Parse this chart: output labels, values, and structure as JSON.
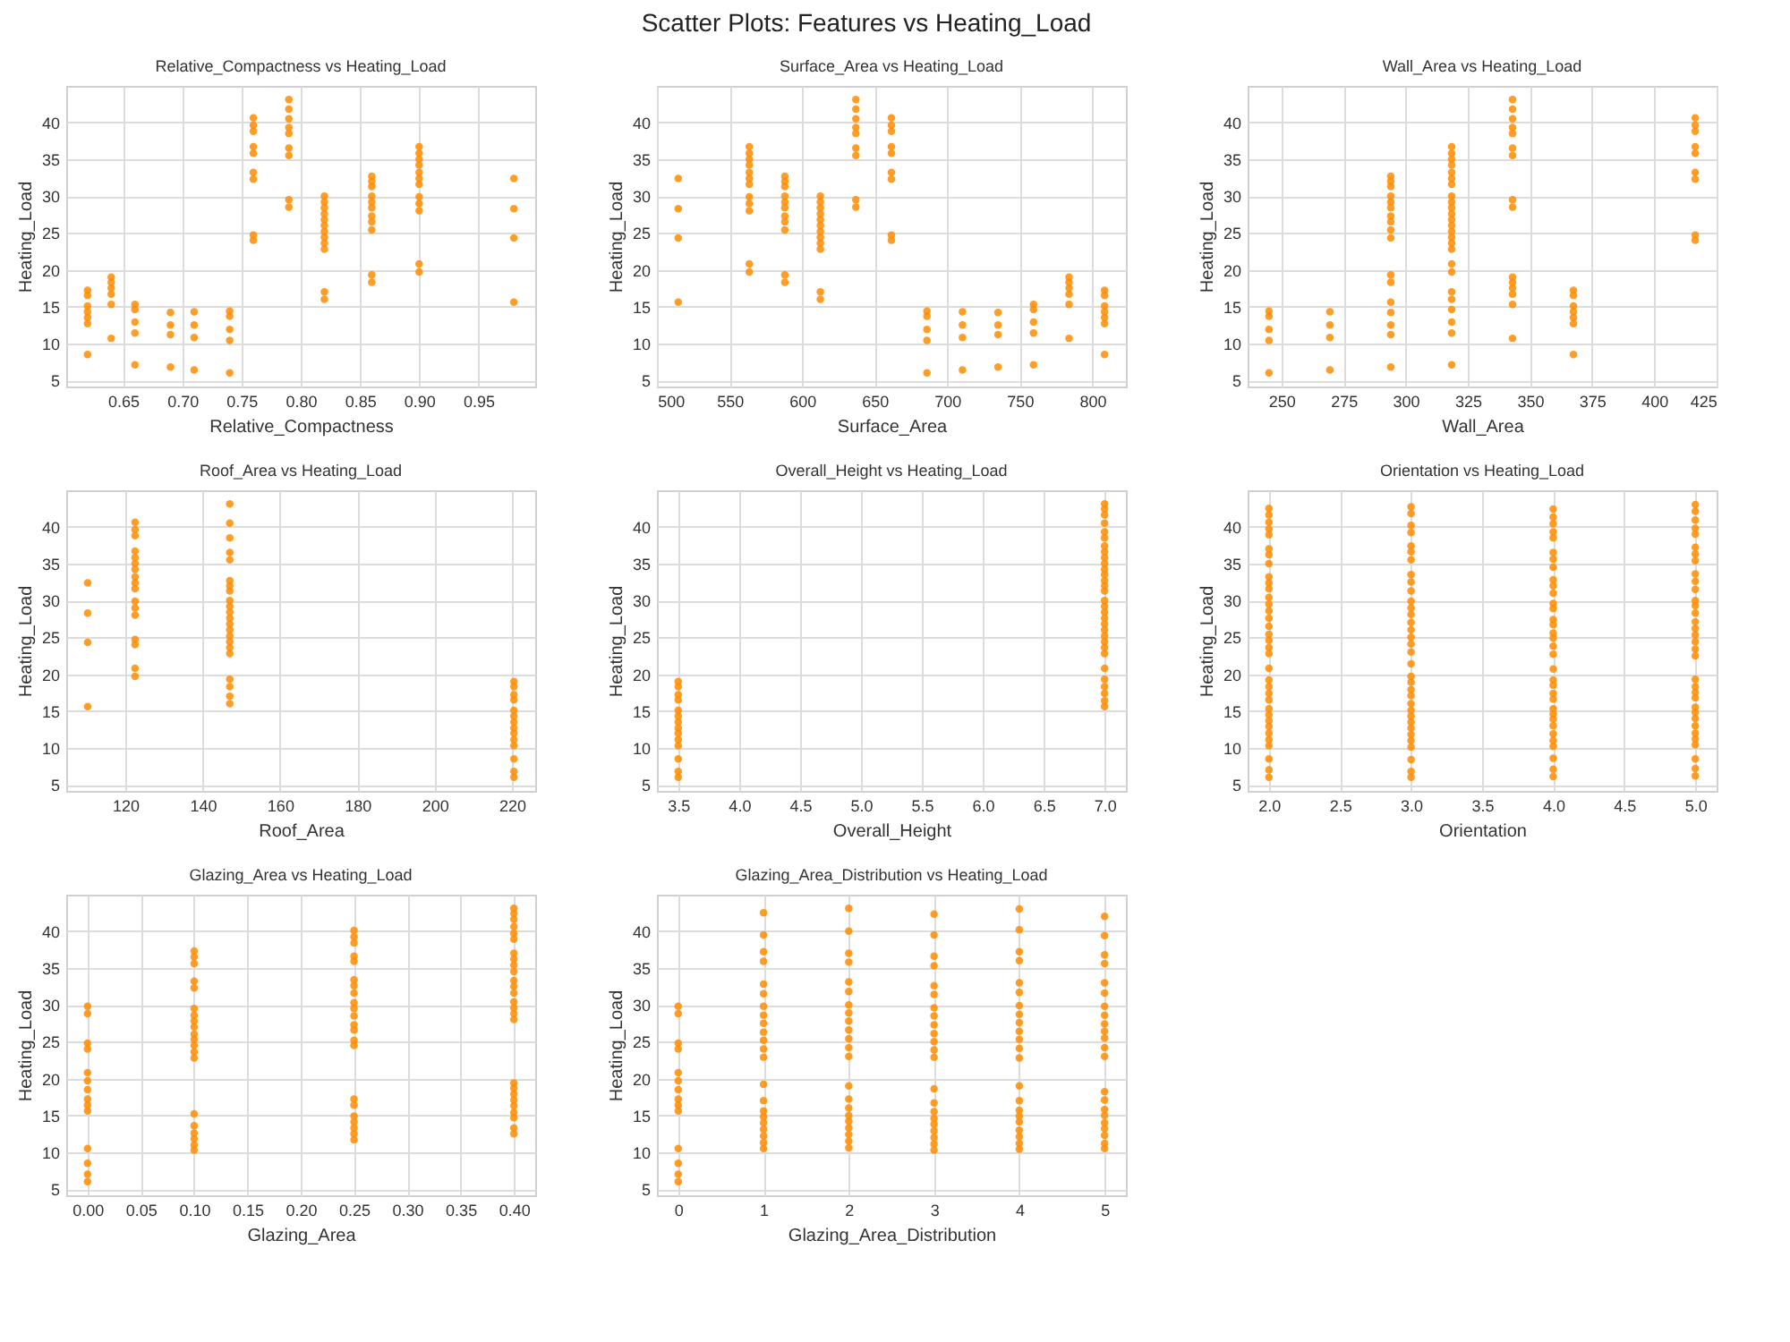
{
  "chart_data": [
    {
      "type": "scatter",
      "title": "Relative_Compactness vs Heating_Load",
      "xlabel": "Relative_Compactness",
      "ylabel": "Heating_Load",
      "annotations": [
        "Scatter Plots: Features vs Heating_Load"
      ],
      "xlim": [
        0.602,
        0.998
      ],
      "xticks": [
        0.65,
        {
          "value": 0.7,
          "label": "0.70"
        },
        0.75,
        {
          "value": 0.8,
          "label": "0.80"
        },
        0.85,
        {
          "value": 0.9,
          "label": "0.90"
        },
        0.95
      ],
      "ylim": [
        4.16,
        44.95
      ],
      "yticks": [
        5,
        10,
        15,
        20,
        25,
        30,
        35,
        40
      ],
      "grid": true,
      "series": [
        {
          "color": "#ff8c00",
          "x": [
            0.62,
            0.62,
            0.62,
            0.62,
            0.62,
            0.62,
            0.62
          ],
          "values": [
            8.5,
            12.7,
            13.5,
            14.3,
            15.1,
            16.5,
            17.2
          ]
        },
        {
          "color": "#ff8c00",
          "x": [
            0.64,
            0.64,
            0.64,
            0.64,
            0.64,
            0.64
          ],
          "values": [
            10.7,
            15.3,
            16.7,
            17.5,
            18.3,
            19.0
          ]
        },
        {
          "color": "#ff8c00",
          "x": [
            0.66,
            0.66,
            0.66,
            0.66,
            0.66
          ],
          "values": [
            7.1,
            11.4,
            12.9,
            14.6,
            15.3
          ]
        },
        {
          "color": "#ff8c00",
          "x": [
            0.69,
            0.69,
            0.69,
            0.69
          ],
          "values": [
            6.8,
            11.2,
            12.5,
            14.2
          ]
        },
        {
          "color": "#ff8c00",
          "x": [
            0.71,
            0.71,
            0.71,
            0.71
          ],
          "values": [
            6.4,
            10.8,
            12.5,
            14.3
          ]
        },
        {
          "color": "#ff8c00",
          "x": [
            0.74,
            0.74,
            0.74,
            0.74,
            0.74
          ],
          "values": [
            6.0,
            10.4,
            11.9,
            13.7,
            14.4
          ]
        },
        {
          "color": "#ff8c00",
          "x": [
            0.76,
            0.76,
            0.76,
            0.76,
            0.76,
            0.76,
            0.76,
            0.76,
            0.76
          ],
          "values": [
            24.0,
            24.7,
            32.3,
            33.2,
            35.8,
            36.7,
            38.8,
            39.6,
            40.6
          ]
        },
        {
          "color": "#ff8c00",
          "x": [
            0.79,
            0.79,
            0.79,
            0.79,
            0.79,
            0.79,
            0.79,
            0.79,
            0.79
          ],
          "values": [
            28.5,
            29.5,
            35.5,
            36.5,
            38.5,
            39.3,
            40.5,
            41.8,
            43.1
          ]
        },
        {
          "color": "#ff8c00",
          "x": [
            0.82,
            0.82,
            0.82,
            0.82,
            0.82,
            0.82,
            0.82,
            0.82,
            0.82,
            0.82,
            0.82,
            0.82
          ],
          "values": [
            16.0,
            17.0,
            22.8,
            23.6,
            24.4,
            25.2,
            26.0,
            26.8,
            27.6,
            28.4,
            29.2,
            30.0
          ]
        },
        {
          "color": "#ff8c00",
          "x": [
            0.86,
            0.86,
            0.86,
            0.86,
            0.86,
            0.86,
            0.86,
            0.86,
            0.86,
            0.86,
            0.86
          ],
          "values": [
            18.3,
            19.3,
            25.4,
            26.5,
            27.3,
            28.4,
            29.2,
            30.0,
            31.3,
            32.0,
            32.7
          ]
        },
        {
          "color": "#ff8c00",
          "x": [
            0.9,
            0.9,
            0.9,
            0.9,
            0.9,
            0.9,
            0.9,
            0.9,
            0.9,
            0.9,
            0.9,
            0.9
          ],
          "values": [
            19.7,
            20.8,
            28.0,
            29.0,
            29.9,
            31.6,
            32.4,
            33.2,
            34.2,
            35.0,
            35.8,
            36.7
          ]
        },
        {
          "color": "#ff8c00",
          "x": [
            0.98,
            0.98,
            0.98,
            0.98
          ],
          "values": [
            15.6,
            24.3,
            28.3,
            32.4
          ]
        }
      ]
    },
    {
      "type": "scatter",
      "title": "Surface_Area vs Heating_Load",
      "xlabel": "Surface_Area",
      "ylabel": "Heating_Load",
      "xlim": [
        499.8,
        823.2
      ],
      "xticks": [
        500,
        550,
        600,
        650,
        700,
        750,
        800
      ],
      "ylim": [
        4.16,
        44.95
      ],
      "yticks": [
        5,
        10,
        15,
        20,
        25,
        30,
        35,
        40
      ],
      "grid": true,
      "series": [
        {
          "color": "#ff8c00",
          "x": [
            514.5,
            514.5,
            514.5,
            514.5
          ],
          "values": [
            15.6,
            24.3,
            28.3,
            32.4
          ]
        },
        {
          "color": "#ff8c00",
          "x": [
            563.5,
            563.5,
            563.5,
            563.5,
            563.5,
            563.5,
            563.5,
            563.5,
            563.5,
            563.5,
            563.5,
            563.5
          ],
          "values": [
            19.7,
            20.8,
            28.0,
            29.0,
            29.9,
            31.6,
            32.4,
            33.2,
            34.2,
            35.0,
            35.8,
            36.7
          ]
        },
        {
          "color": "#ff8c00",
          "x": [
            588,
            588,
            588,
            588,
            588,
            588,
            588,
            588,
            588,
            588,
            588
          ],
          "values": [
            18.3,
            19.3,
            25.4,
            26.5,
            27.3,
            28.4,
            29.2,
            30.0,
            31.3,
            32.0,
            32.7
          ]
        },
        {
          "color": "#ff8c00",
          "x": [
            612.5,
            612.5,
            612.5,
            612.5,
            612.5,
            612.5,
            612.5,
            612.5,
            612.5,
            612.5,
            612.5,
            612.5
          ],
          "values": [
            16.0,
            17.0,
            22.8,
            23.6,
            24.4,
            25.2,
            26.0,
            26.8,
            27.6,
            28.4,
            29.2,
            30.0
          ]
        },
        {
          "color": "#ff8c00",
          "x": [
            637,
            637,
            637,
            637,
            637,
            637,
            637,
            637,
            637
          ],
          "values": [
            28.5,
            29.5,
            35.5,
            36.5,
            38.5,
            39.3,
            40.5,
            41.8,
            43.1
          ]
        },
        {
          "color": "#ff8c00",
          "x": [
            661.5,
            661.5,
            661.5,
            661.5,
            661.5,
            661.5,
            661.5,
            661.5,
            661.5
          ],
          "values": [
            24.0,
            24.7,
            32.3,
            33.2,
            35.8,
            36.7,
            38.8,
            39.6,
            40.6
          ]
        },
        {
          "color": "#ff8c00",
          "x": [
            686,
            686,
            686,
            686,
            686
          ],
          "values": [
            6.0,
            10.4,
            11.9,
            13.7,
            14.4
          ]
        },
        {
          "color": "#ff8c00",
          "x": [
            710.5,
            710.5,
            710.5,
            710.5
          ],
          "values": [
            6.4,
            10.8,
            12.5,
            14.3
          ]
        },
        {
          "color": "#ff8c00",
          "x": [
            735,
            735,
            735,
            735
          ],
          "values": [
            6.8,
            11.2,
            12.5,
            14.2
          ]
        },
        {
          "color": "#ff8c00",
          "x": [
            759.5,
            759.5,
            759.5,
            759.5,
            759.5
          ],
          "values": [
            7.1,
            11.4,
            12.9,
            14.6,
            15.3
          ]
        },
        {
          "color": "#ff8c00",
          "x": [
            784,
            784,
            784,
            784,
            784,
            784
          ],
          "values": [
            10.7,
            15.3,
            16.7,
            17.5,
            18.3,
            19.0
          ]
        },
        {
          "color": "#ff8c00",
          "x": [
            808.5,
            808.5,
            808.5,
            808.5,
            808.5,
            808.5,
            808.5
          ],
          "values": [
            8.5,
            12.7,
            13.5,
            14.3,
            15.1,
            16.5,
            17.2
          ]
        }
      ]
    },
    {
      "type": "scatter",
      "title": "Wall_Area vs Heating_Load",
      "xlabel": "Wall_Area",
      "ylabel": "Heating_Load",
      "xlim": [
        236.4,
        425.1
      ],
      "xticks": [
        250,
        275,
        300,
        325,
        350,
        375,
        400,
        425
      ],
      "ylim": [
        4.16,
        44.95
      ],
      "yticks": [
        5,
        10,
        15,
        20,
        25,
        30,
        35,
        40
      ],
      "grid": true,
      "series": [
        {
          "color": "#ff8c00",
          "x": [
            245,
            245,
            245,
            245,
            245
          ],
          "values": [
            6.0,
            10.4,
            11.9,
            13.7,
            14.4
          ]
        },
        {
          "color": "#ff8c00",
          "x": [
            269.5,
            269.5,
            269.5,
            269.5
          ],
          "values": [
            6.4,
            10.8,
            12.5,
            14.3
          ]
        },
        {
          "color": "#ff8c00",
          "x": [
            294,
            294,
            294,
            294,
            294,
            294,
            294,
            294,
            294,
            294,
            294,
            294,
            294,
            294,
            294,
            294,
            294
          ],
          "values": [
            6.8,
            11.2,
            12.5,
            14.2,
            15.6,
            18.3,
            19.3,
            24.3,
            25.4,
            26.5,
            27.3,
            28.4,
            29.2,
            30.0,
            31.3,
            32.0,
            32.7
          ]
        },
        {
          "color": "#ff8c00",
          "x": [
            318.5,
            318.5,
            318.5,
            318.5,
            318.5,
            318.5,
            318.5,
            318.5,
            318.5,
            318.5,
            318.5,
            318.5,
            318.5,
            318.5,
            318.5,
            318.5,
            318.5,
            318.5,
            318.5,
            318.5,
            318.5,
            318.5,
            318.5,
            318.5,
            318.5
          ],
          "values": [
            7.1,
            11.4,
            12.9,
            14.6,
            16.0,
            17.0,
            19.7,
            20.8,
            22.8,
            23.6,
            24.4,
            25.2,
            26.0,
            26.8,
            27.6,
            28.4,
            29.2,
            30.0,
            31.6,
            32.4,
            33.2,
            34.2,
            35.0,
            35.8,
            36.7
          ]
        },
        {
          "color": "#ff8c00",
          "x": [
            343,
            343,
            343,
            343,
            343,
            343,
            343,
            343,
            343,
            343,
            343,
            343,
            343,
            343,
            343
          ],
          "values": [
            10.7,
            15.3,
            16.7,
            17.5,
            18.3,
            19.0,
            28.5,
            29.5,
            35.5,
            36.5,
            38.5,
            39.3,
            40.5,
            41.8,
            43.1
          ]
        },
        {
          "color": "#ff8c00",
          "x": [
            367.5,
            367.5,
            367.5,
            367.5,
            367.5,
            367.5,
            367.5
          ],
          "values": [
            8.5,
            12.7,
            13.5,
            14.3,
            15.1,
            16.5,
            17.2
          ]
        },
        {
          "color": "#ff8c00",
          "x": [
            416.5,
            416.5,
            416.5,
            416.5,
            416.5,
            416.5,
            416.5,
            416.5,
            416.5
          ],
          "values": [
            24.0,
            24.7,
            32.3,
            33.2,
            35.8,
            36.7,
            38.8,
            39.6,
            40.6
          ]
        }
      ]
    },
    {
      "type": "scatter",
      "title": "Roof_Area vs Heating_Load",
      "xlabel": "Roof_Area",
      "ylabel": "Heating_Load",
      "xlim": [
        104.7,
        226
      ],
      "xticks": [
        120,
        140,
        160,
        180,
        200,
        220
      ],
      "ylim": [
        4.16,
        44.95
      ],
      "yticks": [
        5,
        10,
        15,
        20,
        25,
        30,
        35,
        40
      ],
      "grid": true,
      "series": [
        {
          "color": "#ff8c00",
          "x": [
            110.25,
            110.25,
            110.25,
            110.25
          ],
          "values": [
            15.6,
            24.3,
            28.3,
            32.4
          ]
        },
        {
          "color": "#ff8c00",
          "x": [
            122.5,
            122.5,
            122.5,
            122.5,
            122.5,
            122.5,
            122.5,
            122.5,
            122.5,
            122.5,
            122.5,
            122.5,
            122.5,
            122.5,
            122.5,
            122.5,
            122.5
          ],
          "values": [
            19.7,
            20.8,
            24.0,
            24.7,
            28.0,
            29.0,
            29.9,
            31.6,
            32.4,
            33.2,
            34.2,
            35.0,
            35.8,
            36.7,
            38.8,
            39.6,
            40.6
          ]
        },
        {
          "color": "#ff8c00",
          "x": [
            147,
            147,
            147,
            147,
            147,
            147,
            147,
            147,
            147,
            147,
            147,
            147,
            147,
            147,
            147,
            147,
            147,
            147,
            147,
            147,
            147,
            147
          ],
          "values": [
            16.0,
            17.0,
            18.3,
            19.3,
            22.8,
            23.6,
            24.4,
            25.2,
            26.0,
            26.8,
            27.6,
            28.4,
            29.2,
            30.0,
            31.3,
            32.0,
            32.7,
            35.5,
            36.5,
            38.5,
            40.5,
            43.1
          ]
        },
        {
          "color": "#ff8c00",
          "x": [
            220.5,
            220.5,
            220.5,
            220.5,
            220.5,
            220.5,
            220.5,
            220.5,
            220.5,
            220.5,
            220.5,
            220.5,
            220.5,
            220.5
          ],
          "values": [
            6.0,
            6.8,
            8.5,
            10.3,
            11.1,
            12.0,
            12.7,
            13.5,
            14.3,
            15.1,
            16.5,
            17.2,
            18.3,
            19.0
          ]
        }
      ]
    },
    {
      "type": "scatter",
      "title": "Overall_Height vs Heating_Load",
      "xlabel": "Overall_Height",
      "ylabel": "Heating_Load",
      "xlim": [
        3.325,
        7.175
      ],
      "xticks": [
        3.5,
        {
          "value": 4,
          "label": "4.0"
        },
        4.5,
        {
          "value": 5,
          "label": "5.0"
        },
        5.5,
        {
          "value": 6,
          "label": "6.0"
        },
        6.5,
        {
          "value": 7,
          "label": "7.0"
        }
      ],
      "ylim": [
        4.16,
        44.95
      ],
      "yticks": [
        5,
        10,
        15,
        20,
        25,
        30,
        35,
        40
      ],
      "grid": true,
      "series": [
        {
          "color": "#ff8c00",
          "x": [
            3.5,
            3.5,
            3.5,
            3.5,
            3.5,
            3.5,
            3.5,
            3.5,
            3.5,
            3.5,
            3.5,
            3.5,
            3.5,
            3.5
          ],
          "values": [
            6.0,
            6.8,
            8.5,
            10.3,
            11.1,
            12.0,
            12.7,
            13.5,
            14.3,
            15.1,
            16.5,
            17.2,
            18.3,
            19.0
          ]
        },
        {
          "color": "#ff8c00",
          "x": [
            7,
            7,
            7,
            7,
            7,
            7,
            7,
            7,
            7,
            7,
            7,
            7,
            7,
            7,
            7,
            7,
            7,
            7,
            7,
            7,
            7,
            7,
            7,
            7,
            7,
            7,
            7,
            7,
            7,
            7,
            7
          ],
          "values": [
            15.6,
            16.4,
            17.4,
            18.3,
            19.3,
            20.8,
            22.8,
            23.6,
            24.4,
            25.2,
            26.0,
            26.8,
            27.6,
            28.4,
            29.2,
            30.0,
            31.3,
            32.0,
            32.7,
            33.5,
            34.2,
            35.0,
            35.8,
            36.6,
            37.4,
            38.5,
            39.3,
            40.5,
            41.6,
            42.4,
            43.1
          ]
        }
      ]
    },
    {
      "type": "scatter",
      "title": "Orientation vs Heating_Load",
      "xlabel": "Orientation",
      "ylabel": "Heating_Load",
      "xlim": [
        1.85,
        5.15
      ],
      "xticks": [
        {
          "value": 2,
          "label": "2.0"
        },
        2.5,
        {
          "value": 3,
          "label": "3.0"
        },
        3.5,
        {
          "value": 4,
          "label": "4.0"
        },
        4.5,
        {
          "value": 5,
          "label": "5.0"
        }
      ],
      "ylim": [
        4.16,
        44.95
      ],
      "yticks": [
        5,
        10,
        15,
        20,
        25,
        30,
        35,
        40
      ],
      "grid": true,
      "series": [
        {
          "color": "#ff8c00",
          "x": [
            2,
            2,
            2,
            2,
            2,
            2,
            2,
            2,
            2,
            2,
            2,
            2,
            2,
            2,
            2,
            2,
            2,
            2,
            2,
            2,
            2,
            2,
            2,
            2,
            2,
            2,
            2,
            2,
            2,
            2,
            2,
            2,
            2,
            2,
            2
          ],
          "values": [
            6.0,
            7.0,
            8.5,
            10.3,
            11.1,
            12.0,
            12.9,
            13.7,
            14.5,
            15.3,
            16.5,
            17.4,
            18.3,
            19.2,
            20.8,
            22.8,
            23.6,
            24.6,
            25.4,
            26.5,
            27.6,
            28.6,
            29.5,
            30.4,
            31.6,
            32.4,
            33.2,
            35.0,
            36.2,
            37.0,
            38.9,
            39.7,
            40.6,
            41.6,
            42.5
          ]
        },
        {
          "color": "#ff8c00",
          "x": [
            3,
            3,
            3,
            3,
            3,
            3,
            3,
            3,
            3,
            3,
            3,
            3,
            3,
            3,
            3,
            3,
            3,
            3,
            3,
            3,
            3,
            3,
            3,
            3,
            3,
            3,
            3,
            3,
            3,
            3,
            3,
            3,
            3,
            3
          ],
          "values": [
            6.0,
            6.8,
            8.4,
            10.1,
            11.0,
            11.8,
            12.7,
            13.5,
            14.3,
            15.1,
            16.0,
            17.1,
            17.9,
            18.9,
            19.7,
            21.4,
            23.0,
            24.1,
            25.0,
            26.0,
            27.0,
            28.1,
            29.0,
            29.9,
            31.3,
            32.5,
            33.5,
            35.5,
            36.6,
            37.4,
            39.2,
            40.2,
            41.8,
            42.7
          ]
        },
        {
          "color": "#ff8c00",
          "x": [
            4,
            4,
            4,
            4,
            4,
            4,
            4,
            4,
            4,
            4,
            4,
            4,
            4,
            4,
            4,
            4,
            4,
            4,
            4,
            4,
            4,
            4,
            4,
            4,
            4,
            4,
            4,
            4,
            4,
            4,
            4,
            4,
            4,
            4
          ],
          "values": [
            6.1,
            7.1,
            8.6,
            10.2,
            11.0,
            11.9,
            13.0,
            13.9,
            14.6,
            15.3,
            16.6,
            17.4,
            18.5,
            19.2,
            20.7,
            22.7,
            23.8,
            24.9,
            25.6,
            26.7,
            27.4,
            28.9,
            29.6,
            31.0,
            32.0,
            32.8,
            34.5,
            35.6,
            36.5,
            38.5,
            39.3,
            40.4,
            41.3,
            42.4
          ]
        },
        {
          "color": "#ff8c00",
          "x": [
            5,
            5,
            5,
            5,
            5,
            5,
            5,
            5,
            5,
            5,
            5,
            5,
            5,
            5,
            5,
            5,
            5,
            5,
            5,
            5,
            5,
            5,
            5,
            5,
            5,
            5,
            5,
            5,
            5,
            5,
            5,
            5,
            5,
            5
          ],
          "values": [
            6.2,
            7.2,
            8.5,
            10.4,
            11.2,
            12.0,
            13.0,
            14.0,
            14.8,
            15.5,
            16.8,
            17.5,
            18.3,
            19.3,
            22.5,
            23.4,
            24.4,
            25.3,
            26.2,
            27.1,
            28.3,
            29.3,
            30.0,
            31.5,
            32.6,
            33.6,
            35.4,
            36.3,
            37.2,
            39.0,
            39.8,
            40.9,
            42.1,
            43.0
          ]
        }
      ]
    },
    {
      "type": "scatter",
      "title": "Glazing_Area vs Heating_Load",
      "xlabel": "Glazing_Area",
      "ylabel": "Heating_Load",
      "xlim": [
        -0.02,
        0.42
      ],
      "xticks": [
        {
          "value": 0,
          "label": "0.00"
        },
        0.05,
        {
          "value": 0.1,
          "label": "0.10"
        },
        0.15,
        {
          "value": 0.2,
          "label": "0.20"
        },
        0.25,
        {
          "value": 0.3,
          "label": "0.30"
        },
        0.35,
        {
          "value": 0.4,
          "label": "0.40"
        }
      ],
      "ylim": [
        4.16,
        44.95
      ],
      "yticks": [
        5,
        10,
        15,
        20,
        25,
        30,
        35,
        40
      ],
      "grid": true,
      "series": [
        {
          "color": "#ff8c00",
          "x": [
            0,
            0,
            0,
            0,
            0,
            0,
            0,
            0,
            0,
            0,
            0,
            0,
            0,
            0
          ],
          "values": [
            6.0,
            7.0,
            8.5,
            10.5,
            15.6,
            16.4,
            17.2,
            18.5,
            19.7,
            20.8,
            24.0,
            24.8,
            28.8,
            29.8
          ]
        },
        {
          "color": "#ff8c00",
          "x": [
            0.1,
            0.1,
            0.1,
            0.1,
            0.1,
            0.1,
            0.1,
            0.1,
            0.1,
            0.1,
            0.1,
            0.1,
            0.1,
            0.1,
            0.1,
            0.1,
            0.1,
            0.1,
            0.1,
            0.1
          ],
          "values": [
            10.3,
            11.0,
            11.8,
            12.6,
            13.6,
            15.2,
            22.8,
            23.6,
            24.5,
            25.3,
            26.0,
            27.0,
            27.8,
            28.6,
            29.5,
            32.3,
            33.2,
            35.6,
            36.5,
            37.3
          ]
        },
        {
          "color": "#ff8c00",
          "x": [
            0.25,
            0.25,
            0.25,
            0.25,
            0.25,
            0.25,
            0.25,
            0.25,
            0.25,
            0.25,
            0.25,
            0.25,
            0.25,
            0.25,
            0.25,
            0.25,
            0.25,
            0.25,
            0.25,
            0.25,
            0.25,
            0.25
          ],
          "values": [
            11.7,
            12.5,
            13.3,
            14.1,
            14.9,
            16.4,
            17.2,
            24.5,
            25.2,
            26.6,
            27.3,
            28.5,
            29.5,
            30.3,
            31.6,
            32.6,
            33.4,
            35.9,
            36.6,
            38.4,
            39.2,
            40.1
          ]
        },
        {
          "color": "#ff8c00",
          "x": [
            0.4,
            0.4,
            0.4,
            0.4,
            0.4,
            0.4,
            0.4,
            0.4,
            0.4,
            0.4,
            0.4,
            0.4,
            0.4,
            0.4,
            0.4,
            0.4,
            0.4,
            0.4,
            0.4,
            0.4,
            0.4,
            0.4,
            0.4,
            0.4,
            0.4,
            0.4
          ],
          "values": [
            12.5,
            13.3,
            14.7,
            15.4,
            16.3,
            17.1,
            17.9,
            18.7,
            19.4,
            28.0,
            28.8,
            29.6,
            30.4,
            31.6,
            32.5,
            33.3,
            34.5,
            35.4,
            36.2,
            37.0,
            38.9,
            39.7,
            40.6,
            41.6,
            42.4,
            43.1
          ]
        }
      ]
    },
    {
      "type": "scatter",
      "title": "Glazing_Area_Distribution vs Heating_Load",
      "xlabel": "Glazing_Area_Distribution",
      "ylabel": "Heating_Load",
      "xlim": [
        -0.25,
        5.25
      ],
      "xticks": [
        0,
        1,
        2,
        3,
        4,
        5
      ],
      "ylim": [
        4.16,
        44.95
      ],
      "yticks": [
        5,
        10,
        15,
        20,
        25,
        30,
        35,
        40
      ],
      "grid": true,
      "series": [
        {
          "color": "#ff8c00",
          "x": [
            0,
            0,
            0,
            0,
            0,
            0,
            0,
            0,
            0,
            0,
            0,
            0,
            0,
            0
          ],
          "values": [
            6.0,
            7.0,
            8.5,
            10.5,
            15.6,
            16.4,
            17.2,
            18.5,
            19.7,
            20.8,
            24.0,
            24.8,
            28.8,
            29.8
          ]
        },
        {
          "color": "#ff8c00",
          "x": [
            1,
            1,
            1,
            1,
            1,
            1,
            1,
            1,
            1,
            1,
            1,
            1,
            1,
            1,
            1,
            1,
            1,
            1,
            1,
            1,
            1,
            1
          ],
          "values": [
            10.5,
            11.3,
            12.2,
            13.1,
            14.0,
            14.8,
            15.6,
            17.0,
            19.2,
            22.9,
            24.0,
            25.2,
            26.3,
            27.5,
            28.6,
            29.8,
            31.5,
            32.8,
            35.9,
            37.2,
            39.5,
            42.5
          ]
        },
        {
          "color": "#ff8c00",
          "x": [
            2,
            2,
            2,
            2,
            2,
            2,
            2,
            2,
            2,
            2,
            2,
            2,
            2,
            2,
            2,
            2,
            2,
            2,
            2,
            2,
            2,
            2
          ],
          "values": [
            10.6,
            11.5,
            12.4,
            13.3,
            14.2,
            15.0,
            16.0,
            17.2,
            19.0,
            23.0,
            24.2,
            25.4,
            26.6,
            27.8,
            28.9,
            30.0,
            31.8,
            33.1,
            35.8,
            37.0,
            40.0,
            43.1
          ]
        },
        {
          "color": "#ff8c00",
          "x": [
            3,
            3,
            3,
            3,
            3,
            3,
            3,
            3,
            3,
            3,
            3,
            3,
            3,
            3,
            3,
            3,
            3,
            3,
            3,
            3,
            3,
            3
          ],
          "values": [
            10.3,
            11.1,
            12.0,
            12.9,
            13.8,
            14.6,
            15.5,
            16.7,
            18.6,
            22.9,
            23.9,
            25.0,
            26.1,
            27.3,
            28.5,
            29.6,
            31.4,
            32.6,
            35.3,
            36.6,
            39.5,
            42.3
          ]
        },
        {
          "color": "#ff8c00",
          "x": [
            4,
            4,
            4,
            4,
            4,
            4,
            4,
            4,
            4,
            4,
            4,
            4,
            4,
            4,
            4,
            4,
            4,
            4,
            4,
            4,
            4,
            4
          ],
          "values": [
            10.4,
            11.2,
            12.1,
            13.0,
            14.1,
            14.9,
            15.7,
            17.0,
            19.0,
            22.8,
            24.1,
            25.3,
            26.4,
            27.6,
            28.7,
            29.9,
            31.7,
            33.0,
            36.0,
            37.2,
            40.2,
            43.0
          ]
        },
        {
          "color": "#ff8c00",
          "x": [
            5,
            5,
            5,
            5,
            5,
            5,
            5,
            5,
            5,
            5,
            5,
            5,
            5,
            5,
            5,
            5,
            5,
            5,
            5,
            5,
            5,
            5
          ],
          "values": [
            10.5,
            11.2,
            12.3,
            13.2,
            14.0,
            15.0,
            15.8,
            17.1,
            18.2,
            23.0,
            24.2,
            25.5,
            26.4,
            27.4,
            28.6,
            29.8,
            31.6,
            33.0,
            35.6,
            36.8,
            39.4,
            42.0
          ]
        }
      ]
    }
  ]
}
